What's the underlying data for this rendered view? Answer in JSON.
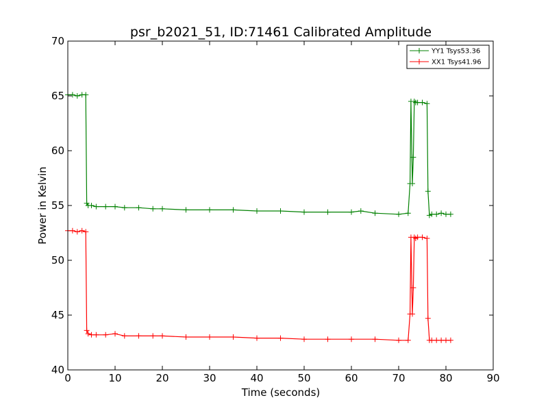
{
  "chart_data": {
    "type": "line",
    "title": "psr_b2021_51, ID:71461 Calibrated Amplitude",
    "xlabel": "Time (seconds)",
    "ylabel": "Power in Kelvin",
    "xlim": [
      0,
      90
    ],
    "ylim": [
      40,
      70
    ],
    "xticks": [
      0,
      10,
      20,
      30,
      40,
      50,
      60,
      70,
      80,
      90
    ],
    "yticks": [
      40,
      45,
      50,
      55,
      60,
      65,
      70
    ],
    "grid": false,
    "legend_placement": "top-right",
    "series": [
      {
        "name": "YY1 Tsys53.36",
        "color": "#008000",
        "marker": "+",
        "x": [
          0,
          1,
          2,
          3,
          3.8,
          4.0,
          4.3,
          5,
          6,
          8,
          10,
          12,
          15,
          18,
          20,
          25,
          30,
          35,
          40,
          45,
          50,
          55,
          60,
          62,
          65,
          70,
          72.0,
          72.4,
          72.6,
          72.9,
          73.1,
          73.3,
          73.6,
          74,
          75,
          76.0,
          76.2,
          76.5,
          77,
          78,
          79,
          80,
          81
        ],
        "y": [
          65.1,
          65.1,
          65.0,
          65.1,
          65.1,
          55.2,
          55.0,
          55.0,
          54.9,
          54.9,
          54.9,
          54.8,
          54.8,
          54.7,
          54.7,
          54.6,
          54.6,
          54.6,
          54.5,
          54.5,
          54.4,
          54.4,
          54.4,
          54.5,
          54.3,
          54.2,
          54.3,
          57.0,
          64.5,
          57.0,
          59.4,
          64.5,
          64.4,
          64.4,
          64.4,
          64.3,
          56.3,
          54.1,
          54.2,
          54.2,
          54.3,
          54.2,
          54.2
        ]
      },
      {
        "name": "XX1 Tsys41.96",
        "color": "#ff0000",
        "marker": "+",
        "x": [
          0,
          1,
          2,
          3,
          3.8,
          4.0,
          4.3,
          5,
          6,
          8,
          10,
          12,
          15,
          18,
          20,
          25,
          30,
          35,
          40,
          45,
          50,
          55,
          60,
          65,
          70,
          72.0,
          72.4,
          72.6,
          72.9,
          73.1,
          73.3,
          73.6,
          74,
          75,
          76.0,
          76.2,
          76.5,
          77,
          78,
          79,
          80,
          81
        ],
        "y": [
          52.7,
          52.7,
          52.6,
          52.7,
          52.6,
          43.6,
          43.3,
          43.2,
          43.2,
          43.2,
          43.3,
          43.1,
          43.1,
          43.1,
          43.1,
          43.0,
          43.0,
          43.0,
          42.9,
          42.9,
          42.8,
          42.8,
          42.8,
          42.8,
          42.7,
          42.7,
          45.1,
          52.1,
          45.1,
          47.5,
          52.1,
          52.0,
          52.1,
          52.1,
          52.0,
          44.7,
          42.7,
          42.7,
          42.7,
          42.7,
          42.7,
          42.7
        ]
      }
    ]
  }
}
